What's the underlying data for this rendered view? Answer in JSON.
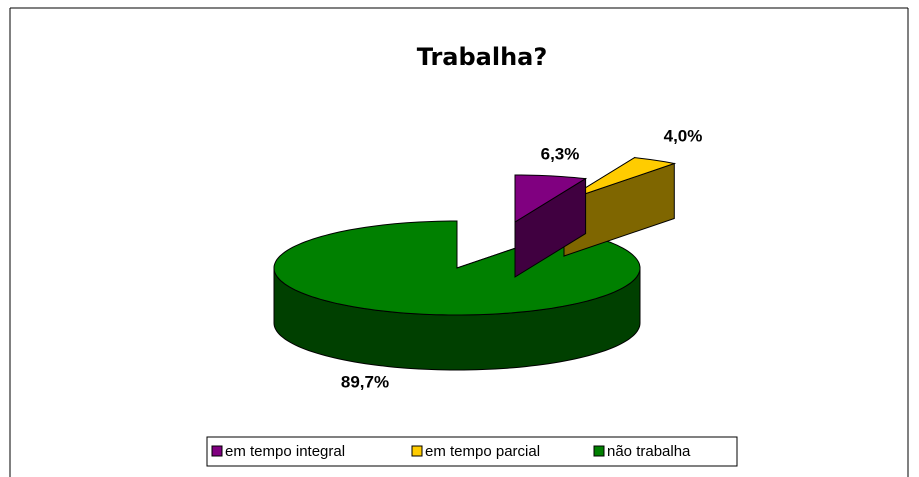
{
  "chart_data": {
    "type": "pie",
    "title": "Trabalha?",
    "categories": [
      "em tempo integral",
      "em tempo parcial",
      "não trabalha"
    ],
    "values": [
      6.3,
      4.0,
      89.7
    ],
    "value_labels": [
      "6,3%",
      "4,0%",
      "89,7%"
    ],
    "colors": [
      "#800080",
      "#ffcc00",
      "#008000"
    ],
    "legend": "bottom"
  }
}
